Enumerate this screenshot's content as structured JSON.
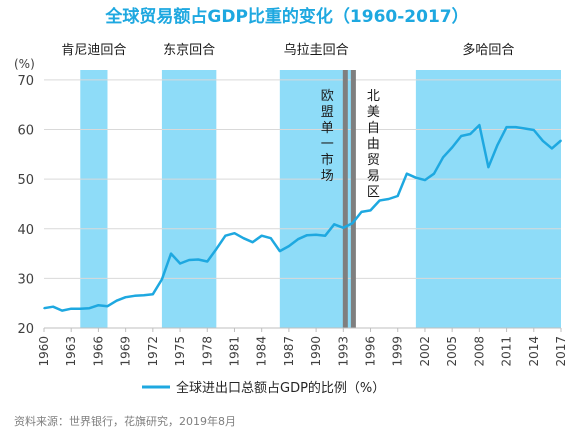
{
  "chart_data": {
    "type": "line",
    "title": "全球贸易额占GDP比重的变化（1960-2017）",
    "y_unit": "(%)",
    "ylim": [
      20,
      72
    ],
    "y_ticks": [
      20,
      30,
      40,
      50,
      60,
      70
    ],
    "xlim": [
      1960,
      2017
    ],
    "x_ticks": [
      1960,
      1963,
      1966,
      1969,
      1972,
      1975,
      1978,
      1981,
      1984,
      1987,
      1990,
      1993,
      1996,
      1999,
      2002,
      2005,
      2008,
      2011,
      2014,
      2017
    ],
    "grid": "horizontal",
    "legend_position": "bottom",
    "series": [
      {
        "name": "全球进出口总额占GDP的比例（%）",
        "color": "#1ea8e0",
        "x": [
          1960,
          1961,
          1962,
          1963,
          1964,
          1965,
          1966,
          1967,
          1968,
          1969,
          1970,
          1971,
          1972,
          1973,
          1974,
          1975,
          1976,
          1977,
          1978,
          1979,
          1980,
          1981,
          1982,
          1983,
          1984,
          1985,
          1986,
          1987,
          1988,
          1989,
          1990,
          1991,
          1992,
          1993,
          1994,
          1995,
          1996,
          1997,
          1998,
          1999,
          2000,
          2001,
          2002,
          2003,
          2004,
          2005,
          2006,
          2007,
          2008,
          2009,
          2010,
          2011,
          2012,
          2013,
          2014,
          2015,
          2016,
          2017
        ],
        "values": [
          24.0,
          24.3,
          23.5,
          23.9,
          23.9,
          24.0,
          24.6,
          24.4,
          25.5,
          26.2,
          26.5,
          26.6,
          26.8,
          29.8,
          35.0,
          33.0,
          33.7,
          33.8,
          33.4,
          35.9,
          38.6,
          39.1,
          38.1,
          37.3,
          38.6,
          38.1,
          35.5,
          36.5,
          37.9,
          38.7,
          38.8,
          38.6,
          40.9,
          40.2,
          41.1,
          43.4,
          43.7,
          45.7,
          46.0,
          46.6,
          51.1,
          50.3,
          49.8,
          51.1,
          54.4,
          56.4,
          58.7,
          59.1,
          60.9,
          52.4,
          56.9,
          60.5,
          60.5,
          60.2,
          59.9,
          57.7,
          56.2,
          57.8
        ]
      }
    ],
    "shaded_periods": [
      {
        "label": "肯尼迪回合",
        "start": 1964,
        "end": 1967
      },
      {
        "label": "东京回合",
        "start": 1973,
        "end": 1979
      },
      {
        "label": "乌拉圭回合",
        "start": 1986,
        "end": 1994
      },
      {
        "label": "多哈回合",
        "start": 2001,
        "end": 2017
      }
    ],
    "vertical_markers": [
      {
        "label": "欧盟单一市场",
        "x": 1993
      },
      {
        "label": "北美自由贸易区",
        "x": 1994
      }
    ]
  },
  "footer": {
    "source": "资料来源：世界银行，花旗研究，2019年8月"
  },
  "colors": {
    "title": "#1ea8e0",
    "shade": "#8edcf8",
    "marker": "#7f7f7f",
    "line": "#1ea8e0",
    "grid": "#d9d9d9",
    "axis_text": "#404040",
    "source": "#7f7f7f"
  }
}
